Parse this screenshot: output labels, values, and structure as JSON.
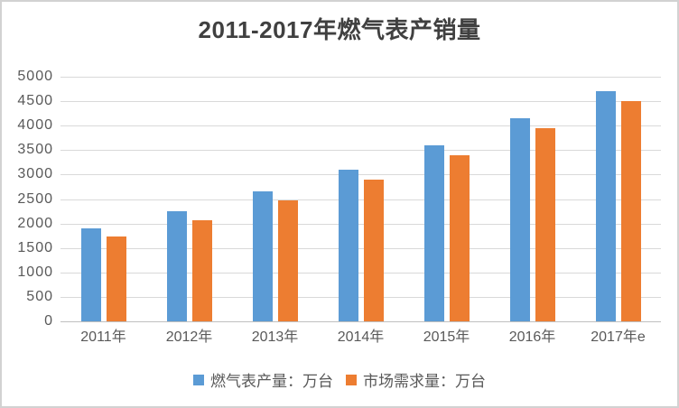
{
  "chart_data": {
    "type": "bar",
    "title": "2011-2017年燃气表产销量",
    "categories": [
      "2011年",
      "2012年",
      "2013年",
      "2014年",
      "2015年",
      "2016年",
      "2017年e"
    ],
    "series": [
      {
        "name": "燃气表产量：万台",
        "color": "#5B9BD5",
        "values": [
          1900,
          2250,
          2660,
          3100,
          3600,
          4150,
          4700
        ]
      },
      {
        "name": "市场需求量：万台",
        "color": "#ED7D31",
        "values": [
          1740,
          2060,
          2480,
          2890,
          3400,
          3950,
          4500
        ]
      }
    ],
    "xlabel": "",
    "ylabel": "",
    "ylim": [
      0,
      5000
    ],
    "ytick_step": 500,
    "yticks": [
      0,
      500,
      1000,
      1500,
      2000,
      2500,
      3000,
      3500,
      4000,
      4500,
      5000
    ],
    "grid": true,
    "legend_position": "bottom"
  },
  "colors": {
    "series1": "#5B9BD5",
    "series2": "#ED7D31",
    "gridline": "#D9D9D9",
    "axis_line": "#BFBFBF",
    "tick_text": "#595959",
    "title_text": "#404040",
    "border": "#D2D2D2",
    "background": "#FFFFFF"
  }
}
